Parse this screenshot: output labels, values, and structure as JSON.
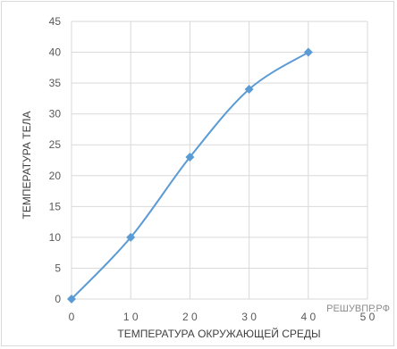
{
  "chart_data": {
    "type": "scatter",
    "xlabel": "ТЕМПЕРАТУРА ОКРУЖАЮЩЕЙ СРЕДЫ",
    "ylabel": "ТЕМПЕРАТУРА ТЕЛА",
    "xlim": [
      0,
      50
    ],
    "ylim": [
      0,
      45
    ],
    "x_ticks": [
      0,
      10,
      20,
      30,
      40,
      50
    ],
    "x_tick_labels": [
      "0",
      "1 0",
      "2 0",
      "3 0",
      "4 0",
      "5 0"
    ],
    "y_ticks": [
      0,
      5,
      10,
      15,
      20,
      25,
      30,
      35,
      40,
      45
    ],
    "y_tick_labels": [
      "0",
      "5",
      "10",
      "15",
      "20",
      "25",
      "30",
      "35",
      "40",
      "45"
    ],
    "grid": true,
    "series": [
      {
        "x": [
          0,
          10,
          20,
          30,
          40
        ],
        "y": [
          0,
          10,
          23,
          34,
          40
        ],
        "color": "#5b9bd5",
        "marker": "diamond",
        "smooth": true
      }
    ],
    "watermark": "РЕШУВПР.РФ"
  }
}
